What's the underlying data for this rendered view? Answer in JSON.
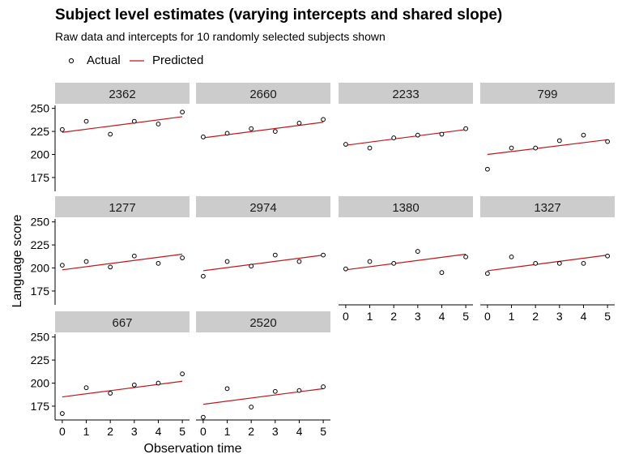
{
  "title": "Subject level estimates (varying intercepts and shared slope)",
  "subtitle": "Raw data and intercepts for 10 randomly selected subjects shown",
  "legend": {
    "actual_label": "Actual",
    "predicted_label": "Predicted"
  },
  "colors": {
    "predicted_line": "#c0151a",
    "strip_bg": "#cccccc",
    "points": "#000000"
  },
  "chart_data": {
    "type": "scatter",
    "title": "Subject level estimates (varying intercepts and shared slope)",
    "subtitle": "Raw data and intercepts for 10 randomly selected subjects shown",
    "xlabel": "Observation time",
    "ylabel": "Language score",
    "x_ticks": [
      0,
      1,
      2,
      3,
      4,
      5
    ],
    "y_ticks": [
      175,
      200,
      225,
      250
    ],
    "xlim": [
      -0.3,
      5.3
    ],
    "ylim": [
      160,
      255
    ],
    "legend_position": "top-left",
    "grid": false,
    "facets": [
      {
        "subject": "2362",
        "actual": [
          227,
          236,
          222,
          236,
          233,
          246
        ],
        "predicted": [
          224,
          241
        ]
      },
      {
        "subject": "2660",
        "actual": [
          219,
          223,
          228,
          225,
          234,
          238
        ],
        "predicted": [
          218,
          235
        ]
      },
      {
        "subject": "2233",
        "actual": [
          211,
          207,
          218,
          221,
          222,
          228
        ],
        "predicted": [
          210,
          227
        ]
      },
      {
        "subject": "799",
        "actual": [
          184,
          207,
          207,
          215,
          221,
          214
        ],
        "predicted": [
          200,
          216
        ]
      },
      {
        "subject": "1277",
        "actual": [
          203,
          207,
          201,
          213,
          205,
          211
        ],
        "predicted": [
          198,
          215
        ]
      },
      {
        "subject": "2974",
        "actual": [
          191,
          207,
          202,
          214,
          207,
          214
        ],
        "predicted": [
          197,
          214
        ]
      },
      {
        "subject": "1380",
        "actual": [
          199,
          207,
          205,
          218,
          195,
          212
        ],
        "predicted": [
          198,
          215
        ]
      },
      {
        "subject": "1327",
        "actual": [
          194,
          212,
          205,
          205,
          205,
          213
        ],
        "predicted": [
          197,
          214
        ]
      },
      {
        "subject": "667",
        "actual": [
          167,
          195,
          189,
          198,
          200,
          210
        ],
        "predicted": [
          185,
          202
        ]
      },
      {
        "subject": "2520",
        "actual": [
          163,
          194,
          174,
          191,
          192,
          196
        ],
        "predicted": [
          177,
          194
        ]
      }
    ]
  }
}
